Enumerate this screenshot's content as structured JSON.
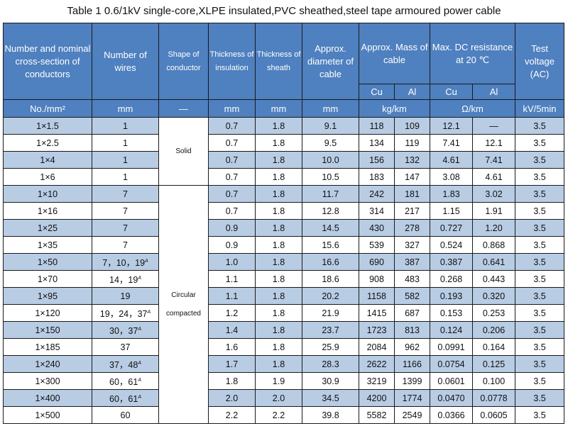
{
  "caption": "Table 1    0.6/1kV single-core,XLPE insulated,PVC sheathed,steel tape armoured power cable",
  "headers": {
    "section": "Number and nominal cross-section of conductors",
    "wires": "Number of wires",
    "shape": "Shape of conductor",
    "insulation": "Thickness of insulation",
    "sheath": "Thickness of sheath",
    "diameter": "Approx. diameter of cable",
    "mass": "Approx. Mass of cable",
    "resistance": "Max. DC resistance at 20 ℃",
    "voltage": "Test voltage (AC)",
    "cu": "Cu",
    "al": "Al"
  },
  "units": {
    "section": "No./mm²",
    "wires": "mm",
    "shape": "—",
    "insulation": "mm",
    "sheath": "mm",
    "diameter": "mm",
    "mass": "kg/km",
    "resistance": "Ω/km",
    "voltage": "kV/5min"
  },
  "shapes": {
    "solid": "Solid",
    "circular": "Circular compacted"
  },
  "rows": [
    {
      "section": "1×1.5",
      "wires": "1",
      "wires_sup": "",
      "ins": "0.7",
      "sheath": "1.8",
      "dia": "9.1",
      "mass_cu": "118",
      "mass_al": "109",
      "res_cu": "12.1",
      "res_al": "—",
      "volt": "3.5"
    },
    {
      "section": "1×2.5",
      "wires": "1",
      "wires_sup": "",
      "ins": "0.7",
      "sheath": "1.8",
      "dia": "9.5",
      "mass_cu": "134",
      "mass_al": "119",
      "res_cu": "7.41",
      "res_al": "12.1",
      "volt": "3.5"
    },
    {
      "section": "1×4",
      "wires": "1",
      "wires_sup": "",
      "ins": "0.7",
      "sheath": "1.8",
      "dia": "10.0",
      "mass_cu": "156",
      "mass_al": "132",
      "res_cu": "4.61",
      "res_al": "7.41",
      "volt": "3.5"
    },
    {
      "section": "1×6",
      "wires": "1",
      "wires_sup": "",
      "ins": "0.7",
      "sheath": "1.8",
      "dia": "10.5",
      "mass_cu": "183",
      "mass_al": "147",
      "res_cu": "3.08",
      "res_al": "4.61",
      "volt": "3.5"
    },
    {
      "section": "1×10",
      "wires": "7",
      "wires_sup": "",
      "ins": "0.7",
      "sheath": "1.8",
      "dia": "11.7",
      "mass_cu": "242",
      "mass_al": "181",
      "res_cu": "1.83",
      "res_al": "3.02",
      "volt": "3.5"
    },
    {
      "section": "1×16",
      "wires": "7",
      "wires_sup": "",
      "ins": "0.7",
      "sheath": "1.8",
      "dia": "12.8",
      "mass_cu": "314",
      "mass_al": "217",
      "res_cu": "1.15",
      "res_al": "1.91",
      "volt": "3.5"
    },
    {
      "section": "1×25",
      "wires": "7",
      "wires_sup": "",
      "ins": "0.9",
      "sheath": "1.8",
      "dia": "14.5",
      "mass_cu": "430",
      "mass_al": "278",
      "res_cu": "0.727",
      "res_al": "1.20",
      "volt": "3.5"
    },
    {
      "section": "1×35",
      "wires": "7",
      "wires_sup": "",
      "ins": "0.9",
      "sheath": "1.8",
      "dia": "15.6",
      "mass_cu": "539",
      "mass_al": "327",
      "res_cu": "0.524",
      "res_al": "0.868",
      "volt": "3.5"
    },
    {
      "section": "1×50",
      "wires": "7，10，19",
      "wires_sup": "A",
      "ins": "1.0",
      "sheath": "1.8",
      "dia": "16.6",
      "mass_cu": "690",
      "mass_al": "387",
      "res_cu": "0.387",
      "res_al": "0.641",
      "volt": "3.5"
    },
    {
      "section": "1×70",
      "wires": "14，19",
      "wires_sup": "A",
      "ins": "1.1",
      "sheath": "1.8",
      "dia": "18.6",
      "mass_cu": "908",
      "mass_al": "483",
      "res_cu": "0.268",
      "res_al": "0.443",
      "volt": "3.5"
    },
    {
      "section": "1×95",
      "wires": "19",
      "wires_sup": "",
      "ins": "1.1",
      "sheath": "1.8",
      "dia": "20.2",
      "mass_cu": "1158",
      "mass_al": "582",
      "res_cu": "0.193",
      "res_al": "0.320",
      "volt": "3.5"
    },
    {
      "section": "1×120",
      "wires": "19，24，37",
      "wires_sup": "A",
      "ins": "1.2",
      "sheath": "1.8",
      "dia": "21.9",
      "mass_cu": "1415",
      "mass_al": "687",
      "res_cu": "0.153",
      "res_al": "0.253",
      "volt": "3.5"
    },
    {
      "section": "1×150",
      "wires": "30，37",
      "wires_sup": "A",
      "ins": "1.4",
      "sheath": "1.8",
      "dia": "23.7",
      "mass_cu": "1723",
      "mass_al": "813",
      "res_cu": "0.124",
      "res_al": "0.206",
      "volt": "3.5"
    },
    {
      "section": "1×185",
      "wires": "37",
      "wires_sup": "",
      "ins": "1.6",
      "sheath": "1.8",
      "dia": "25.9",
      "mass_cu": "2084",
      "mass_al": "962",
      "res_cu": "0.0991",
      "res_al": "0.164",
      "volt": "3.5"
    },
    {
      "section": "1×240",
      "wires": "37，48",
      "wires_sup": "A",
      "ins": "1.7",
      "sheath": "1.8",
      "dia": "28.3",
      "mass_cu": "2622",
      "mass_al": "1166",
      "res_cu": "0.0754",
      "res_al": "0.125",
      "volt": "3.5"
    },
    {
      "section": "1×300",
      "wires": "60，61",
      "wires_sup": "A",
      "ins": "1.8",
      "sheath": "1.9",
      "dia": "30.9",
      "mass_cu": "3219",
      "mass_al": "1399",
      "res_cu": "0.0601",
      "res_al": "0.100",
      "volt": "3.5"
    },
    {
      "section": "1×400",
      "wires": "60，61",
      "wires_sup": "A",
      "ins": "2.0",
      "sheath": "2.0",
      "dia": "34.5",
      "mass_cu": "4200",
      "mass_al": "1774",
      "res_cu": "0.0470",
      "res_al": "0.0778",
      "volt": "3.5"
    },
    {
      "section": "1×500",
      "wires": "60",
      "wires_sup": "",
      "ins": "2.2",
      "sheath": "2.2",
      "dia": "39.8",
      "mass_cu": "5582",
      "mass_al": "2549",
      "res_cu": "0.0366",
      "res_al": "0.0605",
      "volt": "3.5"
    }
  ]
}
